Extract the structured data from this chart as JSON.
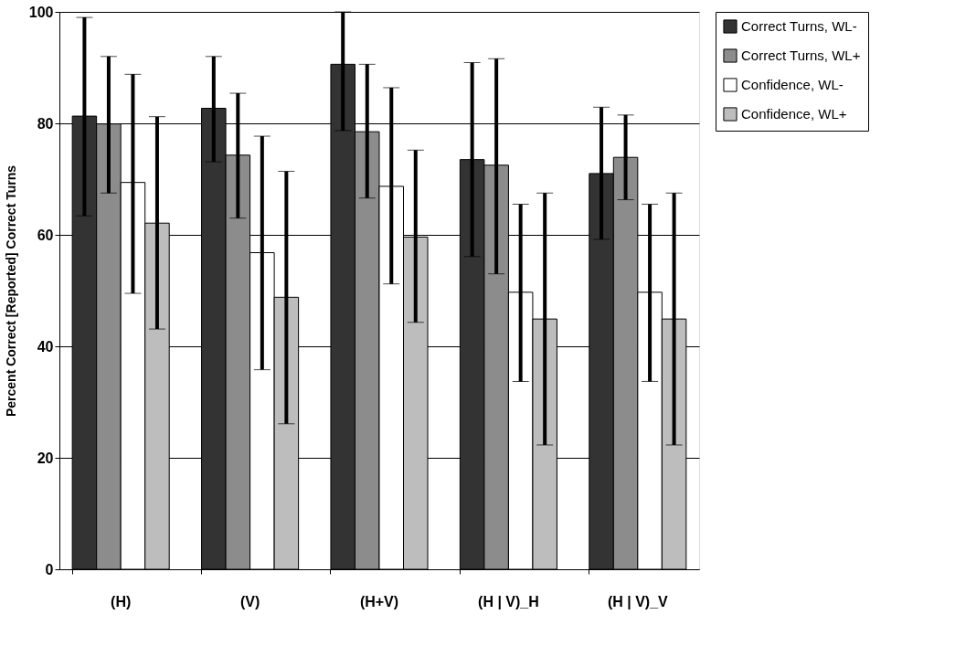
{
  "chart_data": {
    "type": "bar",
    "ylabel": "Percent Correct [Reported]  Correct Turns",
    "categories": [
      "(H)",
      "(V)",
      "(H+V)",
      "(H | V)_H",
      "(H | V)_V"
    ],
    "series": [
      {
        "name": "Correct Turns, WL-",
        "color": "#333333",
        "values": [
          81.3,
          82.7,
          90.6,
          73.5,
          71.0
        ],
        "errors": [
          [
            63.4,
            99
          ],
          [
            73.1,
            92
          ],
          [
            78.7,
            100
          ],
          [
            56.1,
            90.9
          ],
          [
            59.2,
            82.9
          ]
        ]
      },
      {
        "name": "Correct Turns, WL+",
        "color": "#8c8c8c",
        "values": [
          79.9,
          74.3,
          78.5,
          72.5,
          73.9
        ],
        "errors": [
          [
            67.5,
            92
          ],
          [
            63.0,
            85.4
          ],
          [
            66.6,
            90.6
          ],
          [
            53.0,
            91.6
          ],
          [
            66.3,
            81.5
          ]
        ]
      },
      {
        "name": "Confidence, WL-",
        "color": "#ffffff",
        "values": [
          69.4,
          56.8,
          68.7,
          49.7,
          49.7
        ],
        "errors": [
          [
            49.5,
            88.8
          ],
          [
            35.8,
            77.7
          ],
          [
            51.2,
            86.4
          ],
          [
            33.7,
            65.5
          ],
          [
            33.7,
            65.5
          ]
        ]
      },
      {
        "name": "Confidence, WL+",
        "color": "#bdbdbd",
        "values": [
          62.1,
          48.8,
          59.6,
          44.9,
          44.9
        ],
        "errors": [
          [
            43.1,
            81.2
          ],
          [
            26.1,
            71.4
          ],
          [
            44.3,
            75.2
          ],
          [
            22.3,
            67.5
          ],
          [
            22.3,
            67.5
          ]
        ]
      }
    ],
    "ylim": [
      0,
      100
    ],
    "yticks": [
      0,
      20,
      40,
      60,
      80,
      100
    ],
    "grid": "y",
    "legend": "right"
  }
}
